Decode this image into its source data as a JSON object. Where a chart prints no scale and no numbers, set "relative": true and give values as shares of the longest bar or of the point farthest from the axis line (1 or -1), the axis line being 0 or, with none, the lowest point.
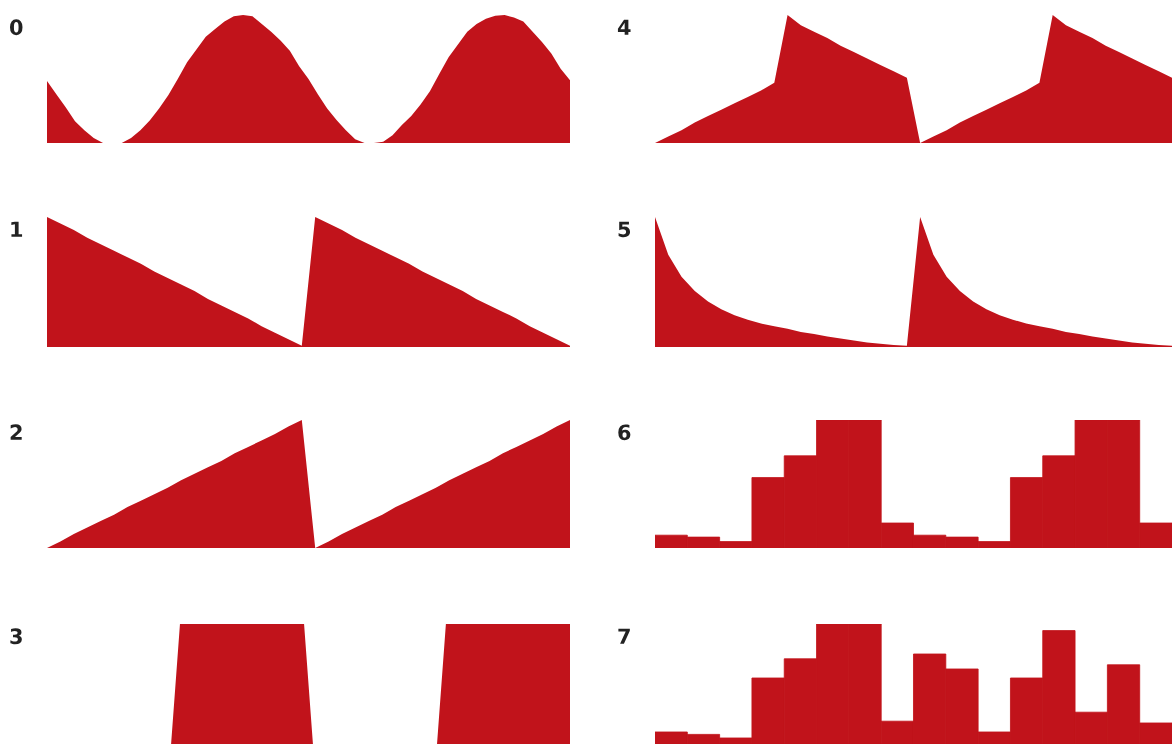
{
  "chart_data": [
    {
      "type": "area",
      "title": "0",
      "relative": true,
      "color": "#c1131b",
      "categories": [
        null,
        null,
        null,
        null,
        null,
        null,
        null,
        null,
        null,
        null,
        null,
        null,
        null,
        null,
        null,
        null,
        null,
        null,
        null,
        null,
        null,
        null,
        null,
        null,
        null,
        null,
        null,
        null,
        null,
        null,
        null,
        null,
        null,
        null,
        null,
        null,
        null,
        null,
        null,
        null,
        null,
        null,
        null,
        null,
        null,
        null,
        null,
        null,
        null,
        null,
        null,
        null,
        null,
        null,
        null,
        null,
        null
      ],
      "values": [
        0.485,
        0.38,
        0.28,
        0.17,
        0.1,
        0.04,
        0,
        0,
        0,
        0.04,
        0.1,
        0.175,
        0.27,
        0.375,
        0.5,
        0.63,
        0.73,
        0.83,
        0.89,
        0.95,
        0.99,
        1,
        0.99,
        0.93,
        0.87,
        0.8,
        0.72,
        0.6,
        0.5,
        0.38,
        0.27,
        0.18,
        0.1,
        0.03,
        0,
        0,
        0.01,
        0.06,
        0.14,
        0.21,
        0.3,
        0.405,
        0.54,
        0.67,
        0.77,
        0.87,
        0.93,
        0.97,
        0.995,
        1,
        0.98,
        0.95,
        0.87,
        0.79,
        0.7,
        0.58,
        0.49
      ]
    },
    {
      "type": "area",
      "title": "1",
      "relative": true,
      "color": "#c1131b",
      "categories": [
        null,
        null,
        null,
        null,
        null,
        null,
        null,
        null,
        null,
        null,
        null,
        null,
        null,
        null,
        null,
        null,
        null,
        null,
        null,
        null,
        null,
        null,
        null,
        null,
        null,
        null,
        null,
        null,
        null,
        null,
        null,
        null,
        null,
        null,
        null,
        null,
        null,
        null,
        null,
        null
      ],
      "values": [
        1,
        0.95,
        0.9,
        0.84,
        0.79,
        0.74,
        0.69,
        0.64,
        0.58,
        0.53,
        0.48,
        0.43,
        0.37,
        0.32,
        0.27,
        0.22,
        0.16,
        0.11,
        0.06,
        0.01,
        1,
        0.95,
        0.9,
        0.84,
        0.79,
        0.74,
        0.69,
        0.64,
        0.58,
        0.53,
        0.48,
        0.43,
        0.37,
        0.32,
        0.27,
        0.22,
        0.16,
        0.11,
        0.06,
        0.01
      ]
    },
    {
      "type": "area",
      "title": "2",
      "relative": true,
      "color": "#c1131b",
      "categories": [
        null,
        null,
        null,
        null,
        null,
        null,
        null,
        null,
        null,
        null,
        null,
        null,
        null,
        null,
        null,
        null,
        null,
        null,
        null,
        null,
        null,
        null,
        null,
        null,
        null,
        null,
        null,
        null,
        null,
        null,
        null,
        null,
        null,
        null,
        null,
        null,
        null,
        null,
        null,
        null
      ],
      "values": [
        0,
        0.05,
        0.11,
        0.16,
        0.21,
        0.26,
        0.32,
        0.37,
        0.42,
        0.47,
        0.53,
        0.58,
        0.63,
        0.68,
        0.74,
        0.79,
        0.84,
        0.89,
        0.95,
        1,
        0,
        0.05,
        0.11,
        0.16,
        0.21,
        0.26,
        0.32,
        0.37,
        0.42,
        0.47,
        0.53,
        0.58,
        0.63,
        0.68,
        0.74,
        0.79,
        0.84,
        0.89,
        0.95,
        1
      ]
    },
    {
      "type": "area",
      "title": "3",
      "relative": true,
      "color": "#c1131b",
      "categories": [
        null,
        null,
        null,
        null,
        null,
        null,
        null,
        null,
        null,
        null,
        null,
        null,
        null,
        null,
        null,
        null,
        null,
        null,
        null,
        null,
        null,
        null,
        null,
        null,
        null,
        null,
        null,
        null,
        null,
        null,
        null,
        null,
        null,
        null,
        null,
        null,
        null,
        null,
        null,
        null,
        null,
        null,
        null,
        null,
        null,
        null,
        null,
        null,
        null,
        null,
        null,
        null,
        null,
        null,
        null,
        null,
        null,
        null,
        null,
        null
      ],
      "values": [
        0,
        0,
        0,
        0,
        0,
        0,
        0,
        0,
        0,
        0,
        0,
        0,
        0,
        0,
        0,
        1,
        1,
        1,
        1,
        1,
        1,
        1,
        1,
        1,
        1,
        1,
        1,
        1,
        1,
        1,
        0,
        0,
        0,
        0,
        0,
        0,
        0,
        0,
        0,
        0,
        0,
        0,
        0,
        0,
        0,
        1,
        1,
        1,
        1,
        1,
        1,
        1,
        1,
        1,
        1,
        1,
        1,
        1,
        1,
        1
      ]
    },
    {
      "type": "area",
      "title": "4",
      "relative": true,
      "color": "#c1131b",
      "categories": [
        null,
        null,
        null,
        null,
        null,
        null,
        null,
        null,
        null,
        null,
        null,
        null,
        null,
        null,
        null,
        null,
        null,
        null,
        null,
        null,
        null,
        null,
        null,
        null,
        null,
        null,
        null,
        null,
        null,
        null,
        null,
        null,
        null,
        null,
        null,
        null,
        null,
        null,
        null,
        null
      ],
      "values": [
        0,
        0.05,
        0.1,
        0.16,
        0.21,
        0.26,
        0.31,
        0.36,
        0.41,
        0.47,
        1,
        0.92,
        0.87,
        0.82,
        0.76,
        0.71,
        0.66,
        0.61,
        0.56,
        0.51,
        0,
        0.05,
        0.1,
        0.16,
        0.21,
        0.26,
        0.31,
        0.36,
        0.41,
        0.47,
        1,
        0.92,
        0.87,
        0.82,
        0.76,
        0.71,
        0.66,
        0.61,
        0.56,
        0.51
      ]
    },
    {
      "type": "area",
      "title": "5",
      "relative": true,
      "color": "#c1131b",
      "categories": [
        null,
        null,
        null,
        null,
        null,
        null,
        null,
        null,
        null,
        null,
        null,
        null,
        null,
        null,
        null,
        null,
        null,
        null,
        null,
        null,
        null,
        null,
        null,
        null,
        null,
        null,
        null,
        null,
        null,
        null,
        null,
        null,
        null,
        null,
        null,
        null,
        null,
        null,
        null,
        null
      ],
      "values": [
        1,
        0.71,
        0.54,
        0.43,
        0.35,
        0.29,
        0.245,
        0.21,
        0.18,
        0.16,
        0.14,
        0.115,
        0.1,
        0.08,
        0.065,
        0.05,
        0.035,
        0.025,
        0.015,
        0.01,
        1,
        0.71,
        0.54,
        0.43,
        0.35,
        0.29,
        0.245,
        0.21,
        0.18,
        0.16,
        0.14,
        0.115,
        0.1,
        0.08,
        0.065,
        0.05,
        0.035,
        0.025,
        0.015,
        0.01
      ]
    },
    {
      "type": "bar",
      "title": "6",
      "relative": true,
      "color": "#c1131b",
      "categories": [
        null,
        null,
        null,
        null,
        null,
        null,
        null,
        null,
        null,
        null,
        null,
        null,
        null,
        null,
        null,
        null
      ],
      "values": [
        0.1,
        0.085,
        0.05,
        0.55,
        0.72,
        1,
        1,
        0.195,
        0.1,
        0.085,
        0.05,
        0.55,
        0.72,
        1,
        1,
        0.195
      ]
    },
    {
      "type": "bar",
      "title": "7",
      "relative": true,
      "color": "#c1131b",
      "categories": [
        null,
        null,
        null,
        null,
        null,
        null,
        null,
        null,
        null,
        null,
        null,
        null,
        null,
        null,
        null,
        null
      ],
      "values": [
        0.1,
        0.08,
        0.05,
        0.55,
        0.71,
        1,
        1,
        0.19,
        0.75,
        0.625,
        0.1,
        0.55,
        0.945,
        0.265,
        0.66,
        0.175
      ]
    }
  ]
}
